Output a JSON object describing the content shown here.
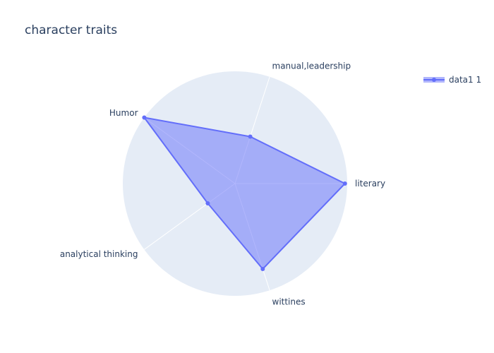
{
  "chart_data": {
    "type": "radar",
    "title": "character traits",
    "categories": [
      "literary",
      "manual,leadership",
      "Humor",
      "analytical thinking",
      "wittines"
    ],
    "series": [
      {
        "name": "data1 1",
        "values": [
          4.9,
          2.2,
          5.0,
          1.5,
          4.0
        ]
      }
    ],
    "radial_range": [
      0,
      5
    ],
    "legend_position": "top-right",
    "grid": true,
    "colors": {
      "polar_background": "#e5ecf6",
      "grid": "#ffffff",
      "line": "#636efa",
      "fill": "rgba(99,110,250,0.5)"
    }
  }
}
